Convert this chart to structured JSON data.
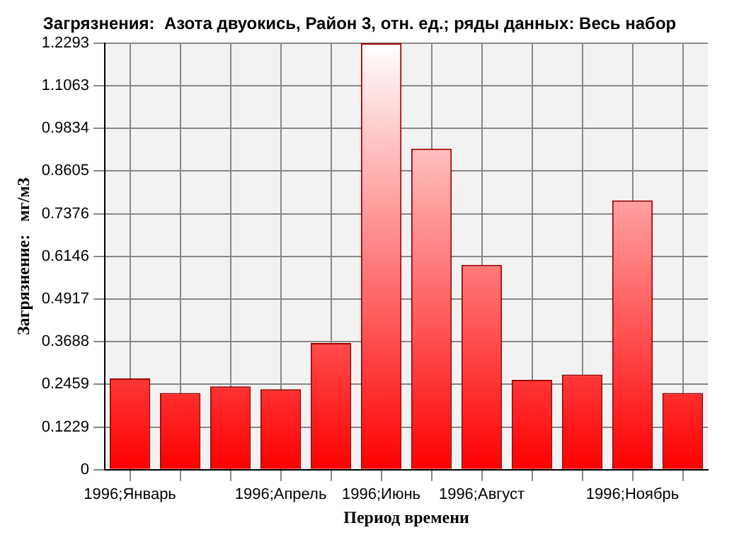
{
  "chart_data": {
    "type": "bar",
    "title": "Загрязнения:  Азота двуокись, Район 3, отн. ед.; ряды данных: Весь набор",
    "xlabel": "Период времени",
    "ylabel": "Загрязнение:   мг/м3",
    "categories": [
      "1996;Январь",
      null,
      null,
      "1996;Апрель",
      null,
      "1996;Июнь",
      null,
      "1996;Август",
      null,
      null,
      "1996;Ноябрь",
      null
    ],
    "values": [
      0.263,
      0.221,
      0.24,
      0.232,
      0.365,
      1.229,
      0.925,
      0.59,
      0.259,
      0.274,
      0.776,
      0.221
    ],
    "color": "#ff0000",
    "ylim": [
      0,
      1.2293
    ],
    "yticks": [
      0,
      0.1229,
      0.2459,
      0.3688,
      0.4917,
      0.6146,
      0.7376,
      0.8605,
      0.9834,
      1.1063,
      1.2293
    ],
    "grid": true,
    "legend": false
  }
}
